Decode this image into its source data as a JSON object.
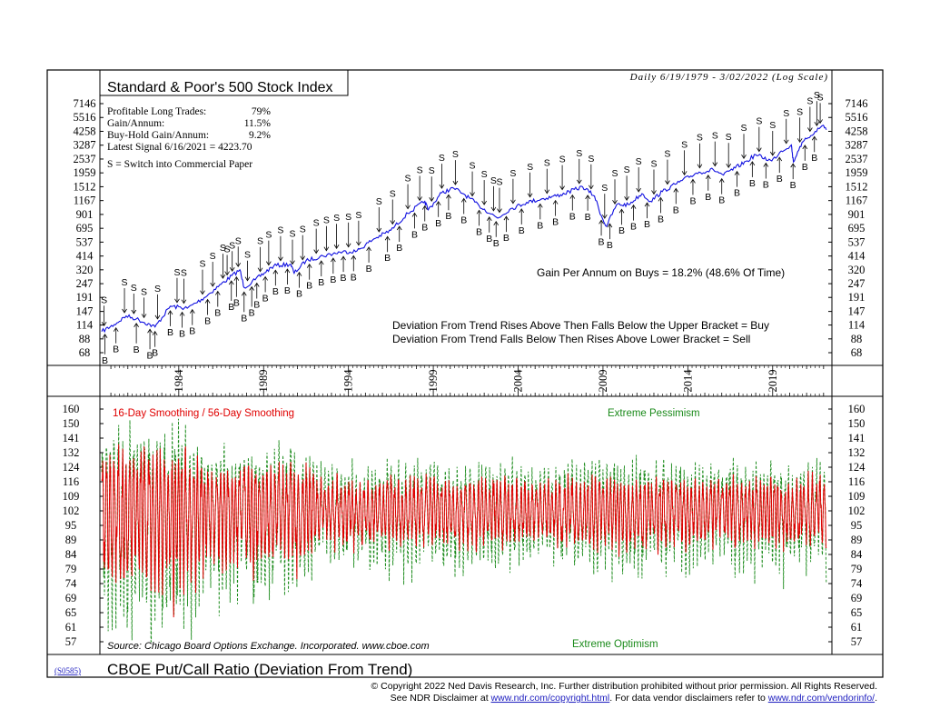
{
  "header": {
    "date_range": "Daily 6/19/1979 - 3/02/2022 (Log Scale)"
  },
  "colors": {
    "spx_line": "#1010e0",
    "fast_line": "#e00000",
    "slow_line": "#1a8a1a",
    "frame": "#000000"
  },
  "chart_data": [
    {
      "type": "line",
      "title": "Standard & Poor's 500 Stock Index",
      "y_scale": "log",
      "y_ticks": [
        "68",
        "88",
        "114",
        "147",
        "191",
        "247",
        "320",
        "414",
        "537",
        "695",
        "901",
        "1167",
        "1512",
        "1959",
        "2537",
        "3287",
        "4258",
        "5516",
        "7146"
      ],
      "x_ticks": [
        "1984",
        "1989",
        "1994",
        "1999",
        "2004",
        "2009",
        "2014",
        "2019"
      ],
      "xlim": [
        1979.46,
        2022.17
      ],
      "ylim": [
        68,
        7146
      ],
      "stats": {
        "profitable_label": "Profitable Long Trades:",
        "profitable_value": "79%",
        "gain_label": "Gain/Annum:",
        "gain_value": "11.5%",
        "buyhold_label": "Buy-Hold Gain/Annum:",
        "buyhold_value": "9.2%",
        "latest_signal": "Latest Signal 6/16/2021 = 4223.70",
        "sell_note": "S = Switch into Commercial Paper"
      },
      "annotations": {
        "gain_on_buys": "Gain Per Annum on Buys = 18.2% (48.6% Of Time)",
        "rule_buy": "Deviation From Trend Rises Above Then Falls Below the Upper Bracket = Buy",
        "rule_sell": "Deviation From Trend Falls Below Then Rises Above Lower Bracket = Sell"
      },
      "series": [
        {
          "name": "S&P 500",
          "x": [
            1979.46,
            1980.2,
            1980.9,
            1981.5,
            1982.6,
            1983.5,
            1984.5,
            1985.5,
            1986.5,
            1987.6,
            1987.85,
            1988.5,
            1989.6,
            1990.6,
            1990.8,
            1991.5,
            1992.5,
            1993.5,
            1994.5,
            1995.5,
            1996.5,
            1997.5,
            1998.5,
            1998.7,
            1999.5,
            2000.2,
            2000.8,
            2001.7,
            2002.8,
            2003.5,
            2004.5,
            2005.5,
            2006.5,
            2007.8,
            2008.5,
            2008.9,
            2009.2,
            2009.8,
            2010.5,
            2011.3,
            2011.8,
            2012.5,
            2013.5,
            2014.5,
            2015.5,
            2016.1,
            2016.8,
            2017.5,
            2018.0,
            2018.95,
            2019.5,
            2020.1,
            2020.22,
            2020.6,
            2021.0,
            2021.5,
            2021.99,
            2022.17
          ],
          "y": [
            101,
            115,
            135,
            128,
            110,
            162,
            156,
            190,
            245,
            320,
            230,
            265,
            345,
            355,
            300,
            380,
            415,
            445,
            455,
            570,
            670,
            920,
            1150,
            980,
            1350,
            1470,
            1320,
            1060,
            840,
            990,
            1130,
            1210,
            1300,
            1510,
            1270,
            880,
            720,
            1080,
            1080,
            1330,
            1150,
            1380,
            1650,
            1950,
            2080,
            1880,
            2150,
            2450,
            2750,
            2450,
            2950,
            3300,
            2400,
            3200,
            3700,
            4250,
            4770,
            4390
          ]
        }
      ],
      "signals": [
        {
          "t": "S",
          "x": 1979.6
        },
        {
          "t": "B",
          "x": 1979.65
        },
        {
          "t": "B",
          "x": 1980.3
        },
        {
          "t": "S",
          "x": 1980.8
        },
        {
          "t": "S",
          "x": 1981.35
        },
        {
          "t": "B",
          "x": 1981.5
        },
        {
          "t": "S",
          "x": 1981.95
        },
        {
          "t": "B",
          "x": 1982.3
        },
        {
          "t": "B",
          "x": 1982.6
        },
        {
          "t": "S",
          "x": 1982.75
        },
        {
          "t": "B",
          "x": 1983.5
        },
        {
          "t": "S",
          "x": 1983.9
        },
        {
          "t": "B",
          "x": 1984.2
        },
        {
          "t": "S",
          "x": 1984.3
        },
        {
          "t": "B",
          "x": 1984.8
        },
        {
          "t": "S",
          "x": 1985.4
        },
        {
          "t": "B",
          "x": 1985.7
        },
        {
          "t": "S",
          "x": 1986.0
        },
        {
          "t": "B",
          "x": 1986.3
        },
        {
          "t": "S",
          "x": 1986.6
        },
        {
          "t": "S",
          "x": 1986.85
        },
        {
          "t": "B",
          "x": 1987.1
        },
        {
          "t": "S",
          "x": 1987.15
        },
        {
          "t": "B",
          "x": 1987.4
        },
        {
          "t": "S",
          "x": 1987.5
        },
        {
          "t": "B",
          "x": 1987.85
        },
        {
          "t": "S",
          "x": 1988.05
        },
        {
          "t": "B",
          "x": 1988.3
        },
        {
          "t": "B",
          "x": 1988.6
        },
        {
          "t": "S",
          "x": 1988.8
        },
        {
          "t": "B",
          "x": 1989.1
        },
        {
          "t": "S",
          "x": 1989.3
        },
        {
          "t": "B",
          "x": 1989.7
        },
        {
          "t": "S",
          "x": 1990.0
        },
        {
          "t": "B",
          "x": 1990.4
        },
        {
          "t": "S",
          "x": 1990.7
        },
        {
          "t": "B",
          "x": 1991.1
        },
        {
          "t": "S",
          "x": 1991.3
        },
        {
          "t": "B",
          "x": 1991.7
        },
        {
          "t": "S",
          "x": 1992.1
        },
        {
          "t": "B",
          "x": 1992.4
        },
        {
          "t": "S",
          "x": 1992.7
        },
        {
          "t": "B",
          "x": 1993.1
        },
        {
          "t": "S",
          "x": 1993.3
        },
        {
          "t": "B",
          "x": 1993.7
        },
        {
          "t": "S",
          "x": 1994.0
        },
        {
          "t": "B",
          "x": 1994.3
        },
        {
          "t": "S",
          "x": 1994.6
        },
        {
          "t": "B",
          "x": 1995.2
        },
        {
          "t": "S",
          "x": 1995.8
        },
        {
          "t": "B",
          "x": 1996.3
        },
        {
          "t": "S",
          "x": 1996.6
        },
        {
          "t": "B",
          "x": 1997.0
        },
        {
          "t": "S",
          "x": 1997.5
        },
        {
          "t": "B",
          "x": 1997.9
        },
        {
          "t": "S",
          "x": 1998.2
        },
        {
          "t": "B",
          "x": 1998.5
        },
        {
          "t": "S",
          "x": 1998.9
        },
        {
          "t": "B",
          "x": 1999.3
        },
        {
          "t": "S",
          "x": 1999.5
        },
        {
          "t": "B",
          "x": 1999.9
        },
        {
          "t": "S",
          "x": 2000.3
        },
        {
          "t": "B",
          "x": 2000.8
        },
        {
          "t": "S",
          "x": 2001.3
        },
        {
          "t": "B",
          "x": 2001.7
        },
        {
          "t": "S",
          "x": 2002.0
        },
        {
          "t": "B",
          "x": 2002.3
        },
        {
          "t": "S",
          "x": 2002.55
        },
        {
          "t": "B",
          "x": 2002.7
        },
        {
          "t": "S",
          "x": 2002.9
        },
        {
          "t": "B",
          "x": 2003.3
        },
        {
          "t": "S",
          "x": 2003.7
        },
        {
          "t": "B",
          "x": 2004.2
        },
        {
          "t": "S",
          "x": 2004.7
        },
        {
          "t": "B",
          "x": 2005.3
        },
        {
          "t": "S",
          "x": 2005.7
        },
        {
          "t": "B",
          "x": 2006.2
        },
        {
          "t": "S",
          "x": 2006.6
        },
        {
          "t": "B",
          "x": 2007.2
        },
        {
          "t": "S",
          "x": 2007.6
        },
        {
          "t": "B",
          "x": 2008.1
        },
        {
          "t": "S",
          "x": 2008.3
        },
        {
          "t": "B",
          "x": 2008.9
        },
        {
          "t": "S",
          "x": 2009.1
        },
        {
          "t": "B",
          "x": 2009.4
        },
        {
          "t": "S",
          "x": 2009.7
        },
        {
          "t": "B",
          "x": 2010.1
        },
        {
          "t": "S",
          "x": 2010.4
        },
        {
          "t": "B",
          "x": 2010.8
        },
        {
          "t": "S",
          "x": 2011.1
        },
        {
          "t": "B",
          "x": 2011.6
        },
        {
          "t": "S",
          "x": 2012.0
        },
        {
          "t": "B",
          "x": 2012.4
        },
        {
          "t": "S",
          "x": 2012.8
        },
        {
          "t": "B",
          "x": 2013.3
        },
        {
          "t": "S",
          "x": 2013.8
        },
        {
          "t": "B",
          "x": 2014.3
        },
        {
          "t": "S",
          "x": 2014.7
        },
        {
          "t": "B",
          "x": 2015.2
        },
        {
          "t": "S",
          "x": 2015.6
        },
        {
          "t": "B",
          "x": 2016.0
        },
        {
          "t": "S",
          "x": 2016.4
        },
        {
          "t": "B",
          "x": 2016.9
        },
        {
          "t": "S",
          "x": 2017.3
        },
        {
          "t": "B",
          "x": 2017.8
        },
        {
          "t": "S",
          "x": 2018.2
        },
        {
          "t": "B",
          "x": 2018.6
        },
        {
          "t": "S",
          "x": 2019.0
        },
        {
          "t": "B",
          "x": 2019.4
        },
        {
          "t": "S",
          "x": 2019.8
        },
        {
          "t": "B",
          "x": 2020.2
        },
        {
          "t": "S",
          "x": 2020.6
        },
        {
          "t": "B",
          "x": 2020.9
        },
        {
          "t": "S",
          "x": 2021.2
        },
        {
          "t": "B",
          "x": 2021.46
        },
        {
          "t": "S",
          "x": 2021.6
        },
        {
          "t": "S",
          "x": 2021.8
        }
      ]
    },
    {
      "type": "line",
      "title": "CBOE Put/Call Ratio (Deviation From Trend)",
      "y_ticks": [
        "57",
        "61",
        "65",
        "69",
        "74",
        "79",
        "84",
        "89",
        "95",
        "102",
        "109",
        "116",
        "124",
        "132",
        "141",
        "150",
        "160"
      ],
      "x_ticks": [
        "1984",
        "1989",
        "1994",
        "1999",
        "2004",
        "2009",
        "2014",
        "2019"
      ],
      "xlim": [
        1979.46,
        2022.17
      ],
      "ylim": [
        57,
        160
      ],
      "legend": "16-Day Smoothing / 56-Day Smoothing",
      "upper_label": "Extreme Pessimism",
      "lower_label": "Extreme Optimism",
      "source": "Source: Chicago Board Options Exchange. Incorporated. www.cboe.com",
      "series": [
        {
          "name": "16-Day Smoothing",
          "amplitude_by_era": {
            "1979-1985": [
              65,
              150
            ],
            "1985-1992": [
              72,
              135
            ],
            "1992-2022": [
              82,
              125
            ]
          }
        },
        {
          "name": "56-Day Smoothing",
          "amplitude_by_era": {
            "1979-1985": [
              58,
              155
            ],
            "1985-1992": [
              70,
              140
            ],
            "1992-2022": [
              78,
              130
            ]
          }
        }
      ]
    }
  ],
  "footer": {
    "chart_code": "(S0585)",
    "copyright": "© Copyright 2022 Ned Davis Research, Inc.  Further distribution prohibited without prior permission.  All Rights Reserved.",
    "disclaimer_prefix": "See NDR Disclaimer at ",
    "disclaimer_link1": "www.ndr.com/copyright.html",
    "disclaimer_mid": ". For data vendor disclaimers refer to ",
    "disclaimer_link2": "www.ndr.com/vendorinfo/",
    "disclaimer_suffix": "."
  }
}
